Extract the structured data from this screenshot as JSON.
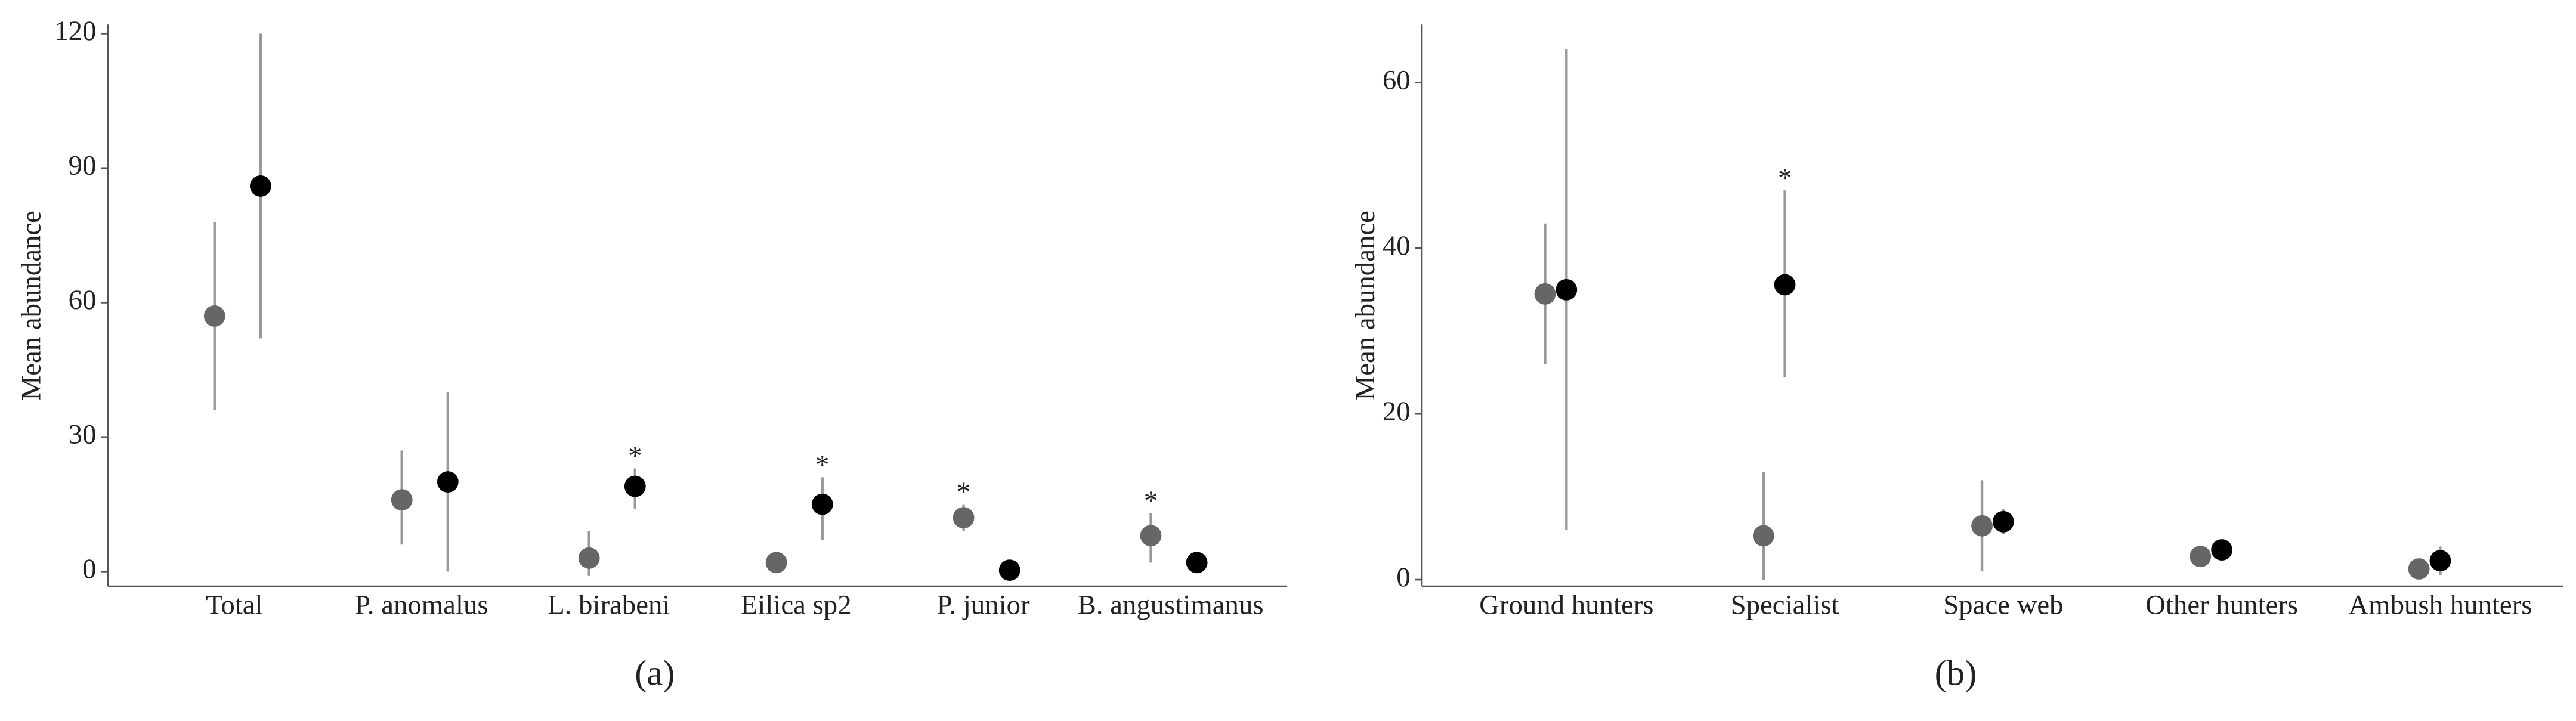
{
  "chart_data": [
    {
      "type": "dotplot",
      "caption": "(a)",
      "ylabel": "Mean abundance",
      "categories": [
        "Total",
        "P. anomalus",
        "L. birabeni",
        "Eilica sp2",
        "P. junior",
        "B. angustimanus"
      ],
      "series": [
        {
          "color": "#666666",
          "values": [
            57,
            16,
            3,
            2,
            12,
            8
          ],
          "lower": [
            36,
            6,
            -1,
            null,
            9,
            2
          ],
          "upper": [
            78,
            27,
            9,
            null,
            15,
            13
          ]
        },
        {
          "color": "#000000",
          "values": [
            86,
            20,
            19,
            15,
            0.3,
            2
          ],
          "lower": [
            52,
            0,
            14,
            7,
            null,
            null
          ],
          "upper": [
            120,
            40,
            23,
            21,
            null,
            null
          ]
        }
      ],
      "annotations": [
        null,
        null,
        {
          "series": 1,
          "text": "*"
        },
        {
          "series": 1,
          "text": "*"
        },
        {
          "series": 0,
          "text": "*"
        },
        {
          "series": 0,
          "text": "*"
        }
      ],
      "ylim": [
        -3.3,
        122
      ],
      "yticks": [
        0,
        30,
        60,
        90,
        120
      ],
      "grid": false
    },
    {
      "type": "dotplot",
      "caption": "(b)",
      "ylabel": "Mean abundance",
      "categories": [
        "Ground hunters",
        "Specialist",
        "Space web",
        "Other hunters",
        "Ambush hunters"
      ],
      "series": [
        {
          "color": "#666666",
          "values": [
            34.5,
            5.3,
            6.5,
            2.8,
            1.3
          ],
          "lower": [
            26,
            0,
            1,
            2,
            null
          ],
          "upper": [
            43,
            13,
            12,
            4,
            null
          ]
        },
        {
          "color": "#000000",
          "values": [
            35,
            35.6,
            7,
            3.6,
            2.3
          ],
          "lower": [
            6,
            24.4,
            5.5,
            2.8,
            0.5
          ],
          "upper": [
            64,
            47,
            8.5,
            4.5,
            4
          ]
        }
      ],
      "annotations": [
        null,
        {
          "series": 1,
          "text": "*"
        },
        null,
        null,
        null
      ],
      "ylim": [
        -0.8,
        67
      ],
      "yticks": [
        0,
        20,
        40,
        60
      ],
      "grid": false
    }
  ]
}
